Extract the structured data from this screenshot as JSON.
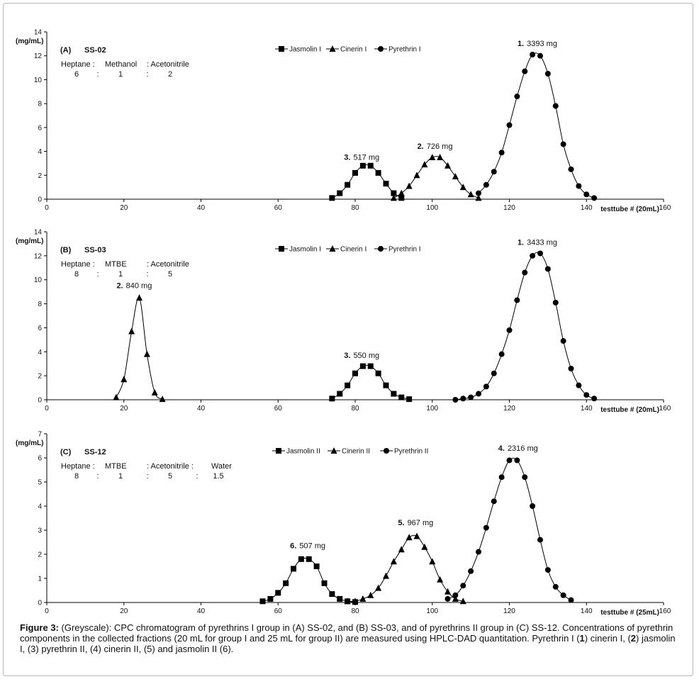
{
  "chart_data": [
    {
      "type": "scatter",
      "panel_label": "(A)",
      "system": "SS-02",
      "solvent_names": [
        "Heptane :",
        "Methanol",
        ": Acetonitrile"
      ],
      "solvent_ratios": [
        "6",
        ":",
        "1",
        ":",
        "2"
      ],
      "ylabel": "(mg/mL)",
      "xlabel": "testtube # (20mL)",
      "xlim": [
        0,
        160
      ],
      "ylim": [
        0,
        14
      ],
      "xticks": [
        0,
        20,
        40,
        60,
        80,
        100,
        120,
        140,
        160
      ],
      "yticks": [
        0,
        2,
        4,
        6,
        8,
        10,
        12,
        14
      ],
      "grid": false,
      "legend": "top-center",
      "series": [
        {
          "name": "Jasmolin I",
          "marker": "square",
          "x": [
            74,
            76,
            78,
            80,
            82,
            84,
            86,
            88,
            90,
            92
          ],
          "y": [
            0.1,
            0.5,
            1.2,
            2.2,
            2.8,
            2.8,
            2.2,
            1.3,
            0.5,
            0.1
          ]
        },
        {
          "name": "Cinerin I",
          "marker": "triangle",
          "x": [
            90,
            92,
            94,
            96,
            98,
            100,
            102,
            104,
            106,
            108,
            110,
            112
          ],
          "y": [
            0.1,
            0.5,
            1.1,
            2.0,
            2.9,
            3.5,
            3.5,
            2.8,
            1.9,
            1.0,
            0.4,
            0.1
          ]
        },
        {
          "name": "Pyrethrin I",
          "marker": "circle",
          "x": [
            112,
            114,
            116,
            118,
            120,
            122,
            124,
            126,
            128,
            130,
            132,
            134,
            136,
            138,
            140,
            142
          ],
          "y": [
            0.5,
            1.2,
            2.3,
            3.9,
            6.2,
            8.6,
            10.7,
            12.1,
            12.0,
            10.5,
            7.8,
            4.6,
            2.5,
            1.1,
            0.4,
            0.1
          ]
        }
      ],
      "annotations": [
        {
          "num": "3.",
          "text": "517 mg",
          "x": 81,
          "y": 3.3
        },
        {
          "num": "2.",
          "text": "726 mg",
          "x": 100,
          "y": 4.2
        },
        {
          "num": "1.",
          "text": "3393 mg",
          "x": 126,
          "y": 12.8
        }
      ]
    },
    {
      "type": "scatter",
      "panel_label": "(B)",
      "system": "SS-03",
      "solvent_names": [
        "Heptane :",
        "MTBE",
        ": Acetonitrile"
      ],
      "solvent_ratios": [
        "8",
        ":",
        "1",
        ":",
        "5"
      ],
      "ylabel": "(mg/mL)",
      "xlabel": "testtube # (20mL)",
      "xlim": [
        0,
        160
      ],
      "ylim": [
        0,
        14
      ],
      "xticks": [
        0,
        20,
        40,
        60,
        80,
        100,
        120,
        140,
        160
      ],
      "yticks": [
        0,
        2,
        4,
        6,
        8,
        10,
        12,
        14
      ],
      "grid": false,
      "legend": "top-center",
      "series": [
        {
          "name": "Jasmolin I",
          "marker": "square",
          "x": [
            74,
            76,
            78,
            80,
            82,
            84,
            86,
            88,
            90,
            92,
            94
          ],
          "y": [
            0.1,
            0.5,
            1.2,
            2.2,
            2.8,
            2.8,
            2.2,
            1.2,
            0.5,
            0.2,
            0.05
          ]
        },
        {
          "name": "Cinerin I",
          "marker": "triangle",
          "x": [
            18,
            20,
            22,
            24,
            26,
            28,
            30
          ],
          "y": [
            0.2,
            1.7,
            5.7,
            8.5,
            3.8,
            0.6,
            0.05
          ]
        },
        {
          "name": "Pyrethrin I",
          "marker": "circle",
          "x": [
            106,
            108,
            110,
            112,
            114,
            116,
            118,
            120,
            122,
            124,
            126,
            128,
            130,
            132,
            134,
            136,
            138,
            140,
            142
          ],
          "y": [
            0.0,
            0.1,
            0.2,
            0.5,
            1.1,
            2.2,
            3.8,
            5.8,
            8.3,
            10.6,
            12.0,
            12.2,
            10.9,
            8.1,
            4.9,
            2.6,
            1.2,
            0.4,
            0.1
          ]
        }
      ],
      "annotations": [
        {
          "num": "2.",
          "text": "840 mg",
          "x": 22,
          "y": 9.3
        },
        {
          "num": "3.",
          "text": "550 mg",
          "x": 81,
          "y": 3.5
        },
        {
          "num": "1.",
          "text": "3433 mg",
          "x": 126,
          "y": 12.9
        }
      ]
    },
    {
      "type": "scatter",
      "panel_label": "(C)",
      "system": "SS-12",
      "solvent_names": [
        "Heptane :",
        "MTBE",
        ": Acetonitrile :",
        "Water"
      ],
      "solvent_ratios": [
        "8",
        ":",
        "1",
        ":",
        "5",
        ":",
        "1.5"
      ],
      "ylabel": "(mg/mL)",
      "xlabel": "testtube # (25mL)",
      "xlim": [
        0,
        160
      ],
      "ylim": [
        0,
        7
      ],
      "xticks": [
        0,
        20,
        40,
        60,
        80,
        100,
        120,
        140,
        160
      ],
      "yticks": [
        0,
        1,
        2,
        3,
        4,
        5,
        6,
        7
      ],
      "grid": false,
      "legend": "top-center",
      "series": [
        {
          "name": "Jasmolin II",
          "marker": "square",
          "x": [
            56,
            58,
            60,
            62,
            64,
            66,
            68,
            70,
            72,
            74,
            76,
            78,
            80
          ],
          "y": [
            0.05,
            0.15,
            0.4,
            0.8,
            1.4,
            1.8,
            1.8,
            1.5,
            0.8,
            0.35,
            0.15,
            0.05,
            0.02
          ]
        },
        {
          "name": "Cinerin II",
          "marker": "triangle",
          "x": [
            78,
            80,
            82,
            84,
            86,
            88,
            90,
            92,
            94,
            96,
            98,
            100,
            102,
            104,
            106,
            108
          ],
          "y": [
            0.05,
            0.05,
            0.15,
            0.3,
            0.6,
            1.1,
            1.7,
            2.2,
            2.7,
            2.75,
            2.3,
            1.7,
            0.95,
            0.45,
            0.15,
            0.05
          ]
        },
        {
          "name": "Pyrethrin II",
          "marker": "circle",
          "x": [
            104,
            106,
            108,
            110,
            112,
            114,
            116,
            118,
            120,
            122,
            124,
            126,
            128,
            130,
            132,
            134,
            136
          ],
          "y": [
            0.15,
            0.3,
            0.7,
            1.3,
            2.1,
            3.1,
            4.2,
            5.2,
            5.9,
            5.9,
            5.2,
            4.0,
            2.6,
            1.35,
            0.65,
            0.3,
            0.1
          ]
        }
      ],
      "annotations": [
        {
          "num": "6.",
          "text": "507 mg",
          "x": 67,
          "y": 2.25
        },
        {
          "num": "5.",
          "text": "967 mg",
          "x": 95,
          "y": 3.2
        },
        {
          "num": "4.",
          "text": "2316 mg",
          "x": 121,
          "y": 6.3
        }
      ]
    }
  ],
  "caption": {
    "prefix": "Figure 3:",
    "text": "(Greyscale): CPC chromatogram of pyrethrins I group in (A) SS-02, and (B) SS-03, and of pyrethrins II group in (C) SS-12. Concentrations of pyrethrin components in the collected fractions (20 mL for group I and 25 mL for group II) are measured using HPLC-DAD quantitation. Pyrethrin I (",
    "parts": [
      "1",
      ") cinerin I, (",
      "2",
      ") jasmolin I, (3) pyrethrin II, (4) cinerin II, (5) and jasmolin II (6)."
    ]
  }
}
